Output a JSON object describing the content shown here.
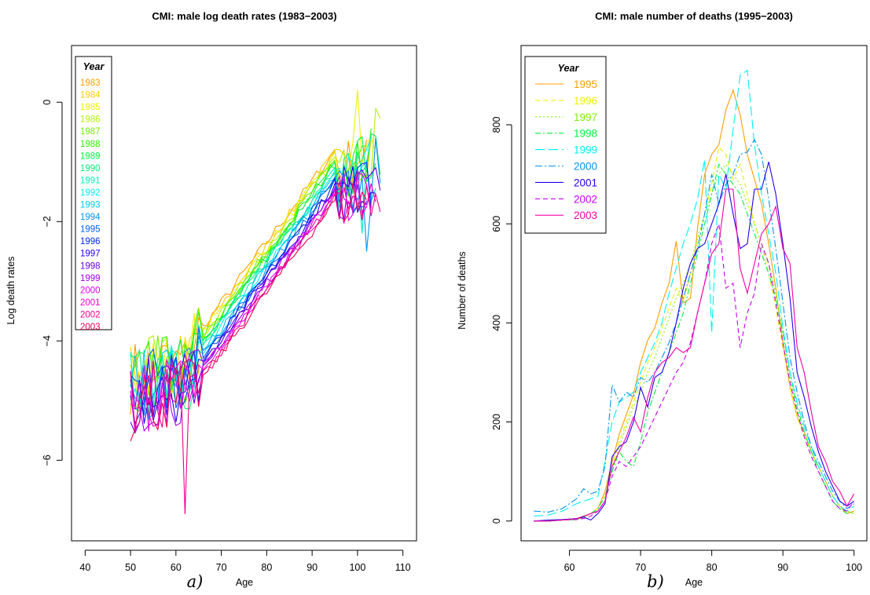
{
  "figure": {
    "caption_a": "a)",
    "caption_b": "b)"
  },
  "chart_data": [
    {
      "type": "line",
      "title": "CMI: male log death rates  (1983−2003)",
      "xlabel": "Age",
      "ylabel": "Log death rates",
      "xlim": [
        37,
        113
      ],
      "ylim": [
        -7.35,
        0.95
      ],
      "xticks": [
        40,
        50,
        60,
        70,
        80,
        90,
        100,
        110
      ],
      "yticks": [
        -6,
        -4,
        -2,
        0
      ],
      "grid": false,
      "legend": {
        "title": "Year",
        "position": "top-left"
      },
      "series": [
        {
          "name": "1983",
          "color": "#FF9D00"
        },
        {
          "name": "1984",
          "color": "#FFCC00"
        },
        {
          "name": "1985",
          "color": "#EEF000"
        },
        {
          "name": "1986",
          "color": "#B3F000"
        },
        {
          "name": "1987",
          "color": "#6EF000"
        },
        {
          "name": "1988",
          "color": "#2EF000"
        },
        {
          "name": "1989",
          "color": "#00F03A"
        },
        {
          "name": "1990",
          "color": "#00F07A"
        },
        {
          "name": "1991",
          "color": "#00F0B8"
        },
        {
          "name": "1992",
          "color": "#00F0F0"
        },
        {
          "name": "1993",
          "color": "#00C8F0"
        },
        {
          "name": "1994",
          "color": "#0094F0"
        },
        {
          "name": "1995",
          "color": "#005EF0"
        },
        {
          "name": "1996",
          "color": "#0028F0"
        },
        {
          "name": "1997",
          "color": "#2400F0"
        },
        {
          "name": "1998",
          "color": "#6400F0"
        },
        {
          "name": "1999",
          "color": "#A400F0"
        },
        {
          "name": "2000",
          "color": "#E000F0"
        },
        {
          "name": "2001",
          "color": "#F000C8"
        },
        {
          "name": "2002",
          "color": "#F0008C"
        },
        {
          "name": "2003",
          "color": "#F00050"
        }
      ]
    },
    {
      "type": "line",
      "title": "CMI: male number of deaths  (1995−2003)",
      "xlabel": "Age",
      "ylabel": "Number of deaths",
      "xlim": [
        53.2,
        101.8
      ],
      "ylim": [
        -40,
        960
      ],
      "xticks": [
        60,
        70,
        80,
        90,
        100
      ],
      "yticks": [
        0,
        200,
        400,
        600,
        800
      ],
      "grid": false,
      "legend": {
        "title": "Year",
        "position": "top-left"
      },
      "series": [
        {
          "name": "1995",
          "color": "#FF9D00",
          "dash": "none",
          "x": [
            55,
            57,
            59,
            61,
            62,
            63,
            64,
            65,
            66,
            67,
            68,
            69,
            70,
            71,
            72,
            73,
            74,
            75,
            76,
            77,
            78,
            79,
            80,
            81,
            82,
            83,
            84,
            85,
            86,
            87,
            88,
            89,
            90,
            91,
            92,
            93,
            94,
            95,
            96,
            97,
            98,
            99,
            100
          ],
          "values": [
            0,
            0,
            2,
            3,
            8,
            15,
            25,
            60,
            120,
            175,
            215,
            255,
            320,
            365,
            390,
            440,
            480,
            565,
            440,
            450,
            590,
            700,
            740,
            760,
            830,
            870,
            820,
            740,
            690,
            640,
            560,
            470,
            360,
            270,
            210,
            180,
            140,
            110,
            80,
            50,
            30,
            15,
            20
          ]
        },
        {
          "name": "1996",
          "color": "#EEF000",
          "dash": "6,4",
          "x": [
            55,
            57,
            59,
            61,
            62,
            63,
            64,
            65,
            66,
            67,
            68,
            69,
            70,
            71,
            72,
            73,
            74,
            75,
            76,
            77,
            78,
            79,
            80,
            81,
            82,
            83,
            84,
            85,
            86,
            87,
            88,
            89,
            90,
            91,
            92,
            93,
            94,
            95,
            96,
            97,
            98,
            99,
            100
          ],
          "values": [
            0,
            0,
            2,
            3,
            8,
            15,
            25,
            50,
            110,
            160,
            200,
            240,
            280,
            320,
            350,
            390,
            430,
            470,
            440,
            500,
            560,
            620,
            680,
            755,
            740,
            690,
            720,
            660,
            600,
            560,
            500,
            430,
            350,
            270,
            210,
            170,
            140,
            110,
            80,
            50,
            30,
            20,
            15
          ]
        },
        {
          "name": "1997",
          "color": "#7CF000",
          "dash": "2,3",
          "x": [
            55,
            57,
            59,
            61,
            62,
            63,
            64,
            65,
            66,
            67,
            68,
            69,
            70,
            71,
            72,
            73,
            74,
            75,
            76,
            77,
            78,
            79,
            80,
            81,
            82,
            83,
            84,
            85,
            86,
            87,
            88,
            89,
            90,
            91,
            92,
            93,
            94,
            95,
            96,
            97,
            98,
            99,
            100
          ],
          "values": [
            0,
            0,
            2,
            3,
            8,
            15,
            25,
            50,
            100,
            150,
            190,
            230,
            260,
            300,
            330,
            370,
            410,
            450,
            480,
            520,
            570,
            620,
            660,
            700,
            720,
            700,
            680,
            640,
            600,
            560,
            520,
            460,
            380,
            290,
            220,
            175,
            140,
            110,
            80,
            50,
            30,
            20,
            15
          ]
        },
        {
          "name": "1998",
          "color": "#00F03A",
          "dash": "7,3,2,3",
          "x": [
            55,
            57,
            59,
            61,
            62,
            63,
            64,
            65,
            66,
            67,
            68,
            69,
            70,
            71,
            72,
            73,
            74,
            75,
            76,
            77,
            78,
            79,
            80,
            81,
            82,
            83,
            84,
            85,
            86,
            87,
            88,
            89,
            90,
            91,
            92,
            93,
            94,
            95,
            96,
            97,
            98,
            99,
            100
          ],
          "values": [
            0,
            0,
            2,
            3,
            8,
            15,
            25,
            50,
            100,
            140,
            120,
            110,
            160,
            220,
            260,
            300,
            340,
            380,
            420,
            480,
            540,
            600,
            660,
            720,
            700,
            680,
            660,
            620,
            580,
            540,
            500,
            450,
            380,
            300,
            230,
            180,
            140,
            100,
            70,
            40,
            25,
            15,
            20
          ]
        },
        {
          "name": "1999",
          "color": "#00F0F0",
          "dash": "12,5",
          "x": [
            55,
            57,
            59,
            61,
            62,
            63,
            64,
            65,
            66,
            67,
            68,
            69,
            70,
            71,
            72,
            73,
            74,
            75,
            76,
            77,
            78,
            79,
            80,
            81,
            82,
            83,
            84,
            85,
            86,
            87,
            88,
            89,
            90,
            91,
            92,
            93,
            94,
            95,
            96,
            97,
            98,
            99,
            100
          ],
          "values": [
            10,
            12,
            20,
            35,
            40,
            45,
            50,
            120,
            200,
            240,
            250,
            260,
            300,
            330,
            360,
            400,
            460,
            510,
            560,
            600,
            650,
            730,
            380,
            700,
            670,
            790,
            900,
            910,
            760,
            660,
            580,
            500,
            390,
            300,
            240,
            190,
            150,
            110,
            80,
            50,
            30,
            20,
            30
          ]
        },
        {
          "name": "2000",
          "color": "#0094F0",
          "dash": "9,3,2,3",
          "x": [
            55,
            57,
            59,
            61,
            62,
            63,
            64,
            65,
            66,
            67,
            68,
            69,
            70,
            71,
            72,
            73,
            74,
            75,
            76,
            77,
            78,
            79,
            80,
            81,
            82,
            83,
            84,
            85,
            86,
            87,
            88,
            89,
            90,
            91,
            92,
            93,
            94,
            95,
            96,
            97,
            98,
            99,
            100
          ],
          "values": [
            20,
            18,
            25,
            45,
            65,
            55,
            60,
            110,
            275,
            240,
            260,
            250,
            290,
            280,
            300,
            330,
            360,
            400,
            450,
            500,
            550,
            620,
            700,
            640,
            680,
            700,
            740,
            745,
            770,
            740,
            650,
            550,
            440,
            330,
            260,
            200,
            150,
            120,
            90,
            60,
            40,
            25,
            35
          ]
        },
        {
          "name": "2001",
          "color": "#2400F0",
          "dash": "none",
          "x": [
            55,
            57,
            59,
            61,
            62,
            63,
            64,
            65,
            66,
            67,
            68,
            69,
            70,
            71,
            72,
            73,
            74,
            75,
            76,
            77,
            78,
            79,
            80,
            81,
            82,
            83,
            84,
            85,
            86,
            87,
            88,
            89,
            90,
            91,
            92,
            93,
            94,
            95,
            96,
            97,
            98,
            99,
            100
          ],
          "values": [
            0,
            2,
            3,
            5,
            8,
            2,
            15,
            35,
            130,
            150,
            160,
            200,
            270,
            230,
            290,
            300,
            340,
            400,
            470,
            520,
            550,
            560,
            600,
            640,
            700,
            620,
            550,
            560,
            670,
            670,
            725,
            660,
            560,
            450,
            300,
            250,
            190,
            140,
            100,
            70,
            40,
            30,
            40
          ]
        },
        {
          "name": "2002",
          "color": "#C000F0",
          "dash": "6,4",
          "x": [
            55,
            57,
            59,
            61,
            62,
            63,
            64,
            65,
            66,
            67,
            68,
            69,
            70,
            71,
            72,
            73,
            74,
            75,
            76,
            77,
            78,
            79,
            80,
            81,
            82,
            83,
            84,
            85,
            86,
            87,
            88,
            89,
            90,
            91,
            92,
            93,
            94,
            95,
            96,
            97,
            98,
            99,
            100
          ],
          "values": [
            0,
            0,
            2,
            3,
            5,
            10,
            20,
            40,
            90,
            120,
            110,
            130,
            150,
            180,
            210,
            240,
            270,
            300,
            320,
            360,
            420,
            480,
            560,
            600,
            470,
            480,
            350,
            420,
            460,
            560,
            520,
            440,
            360,
            280,
            220,
            170,
            130,
            100,
            70,
            40,
            25,
            20,
            40
          ]
        },
        {
          "name": "2003",
          "color": "#F000A8",
          "dash": "none",
          "x": [
            55,
            57,
            59,
            61,
            62,
            63,
            64,
            65,
            66,
            67,
            68,
            69,
            70,
            71,
            72,
            73,
            74,
            75,
            76,
            77,
            78,
            79,
            80,
            81,
            82,
            83,
            84,
            85,
            86,
            87,
            88,
            89,
            90,
            91,
            92,
            93,
            94,
            95,
            96,
            97,
            98,
            99,
            100
          ],
          "values": [
            0,
            0,
            2,
            5,
            10,
            15,
            20,
            40,
            110,
            140,
            170,
            210,
            180,
            250,
            300,
            320,
            330,
            350,
            340,
            350,
            420,
            480,
            540,
            560,
            670,
            670,
            510,
            460,
            520,
            580,
            600,
            635,
            550,
            520,
            350,
            300,
            220,
            150,
            120,
            80,
            60,
            30,
            55
          ]
        }
      ]
    }
  ]
}
